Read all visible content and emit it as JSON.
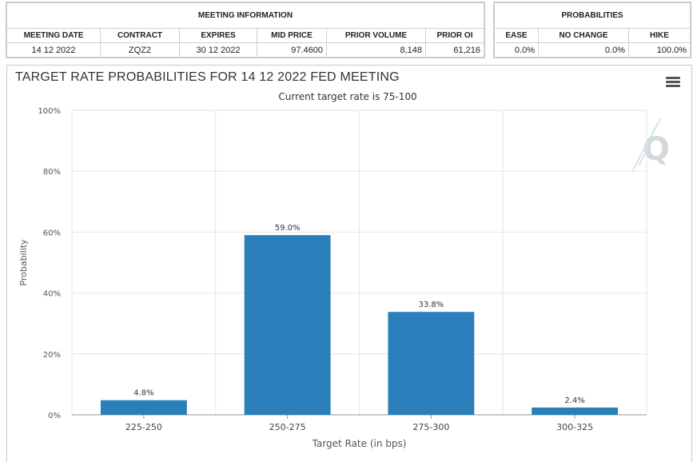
{
  "meeting_info": {
    "title": "MEETING INFORMATION",
    "columns": [
      "MEETING DATE",
      "CONTRACT",
      "EXPIRES",
      "MID PRICE",
      "PRIOR VOLUME",
      "PRIOR OI"
    ],
    "row": {
      "meeting_date": "14 12 2022",
      "contract": "ZQZ2",
      "expires": "30 12 2022",
      "mid_price": "97.4600",
      "prior_volume": "8,148",
      "prior_oi": "61,216"
    }
  },
  "probabilities": {
    "title": "PROBABILITIES",
    "columns": [
      "EASE",
      "NO CHANGE",
      "HIKE"
    ],
    "row": {
      "ease": "0.0%",
      "no_change": "0.0%",
      "hike": "100.0%"
    }
  },
  "chart_data": {
    "type": "bar",
    "title": "TARGET RATE PROBABILITIES FOR 14 12 2022 FED MEETING",
    "subtitle": "Current target rate is 75-100",
    "xlabel": "Target Rate (in bps)",
    "ylabel": "Probability",
    "categories": [
      "225-250",
      "250-275",
      "275-300",
      "300-325"
    ],
    "values": [
      4.8,
      59.0,
      33.8,
      2.4
    ],
    "data_labels": [
      "4.8%",
      "59.0%",
      "33.8%",
      "2.4%"
    ],
    "ylim": [
      0,
      100
    ],
    "yticks": [
      0,
      20,
      40,
      60,
      80,
      100
    ],
    "ytick_labels": [
      "0%",
      "20%",
      "40%",
      "60%",
      "80%",
      "100%"
    ],
    "grid": true,
    "bar_color": "#2a7fba",
    "legend": "none"
  },
  "icons": {
    "menu": "hamburger-menu-icon",
    "watermark": "cme-q-logo-icon"
  }
}
